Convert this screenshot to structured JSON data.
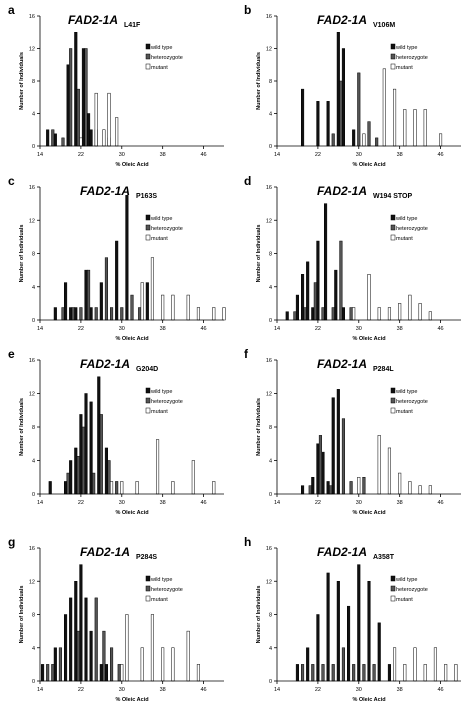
{
  "figure": {
    "legend_labels": [
      "wild type",
      "heterozygote",
      "mutant"
    ],
    "colors": {
      "wild_type": "#111111",
      "heterozygote": "#555555",
      "mutant": "#ffffff",
      "axis": "#000000"
    }
  },
  "chart_data": [
    {
      "panel": "a",
      "type": "bar",
      "gene": "FAD2-1A",
      "mutation": "L41F",
      "xlabel": "% Oleic Acid",
      "ylabel": "Number of Individuals",
      "xticks": [
        14,
        22,
        30,
        38,
        46
      ],
      "yticks": [
        0,
        4,
        8,
        12,
        16
      ],
      "xlim": [
        14,
        50
      ],
      "ylim": [
        0,
        16
      ],
      "grid": false,
      "legend_position": "top-right",
      "series": [
        {
          "name": "wild type",
          "x": [
            15.5,
            17,
            19.5,
            21,
            22.5,
            23.5,
            24
          ],
          "values": [
            2,
            1.5,
            10,
            14,
            12,
            4,
            2
          ]
        },
        {
          "name": "heterozygote",
          "x": [
            16.5,
            18.5,
            20,
            21.5,
            23,
            25,
            27.5
          ],
          "values": [
            2,
            1,
            12,
            7,
            12,
            2,
            1
          ]
        },
        {
          "name": "mutant",
          "x": [
            22,
            25,
            26.5,
            27.5,
            29
          ],
          "values": [
            1,
            6.5,
            2,
            6.5,
            3.5
          ]
        }
      ]
    },
    {
      "panel": "b",
      "type": "bar",
      "gene": "FAD2-1A",
      "mutation": "V106M",
      "xlabel": "% Oleic Acid",
      "ylabel": "Number of Individuals",
      "xticks": [
        14,
        22,
        30,
        38,
        46
      ],
      "yticks": [
        0,
        4,
        8,
        12,
        16
      ],
      "xlim": [
        14,
        50
      ],
      "ylim": [
        0,
        16
      ],
      "grid": false,
      "legend_position": "top-right",
      "series": [
        {
          "name": "wild type",
          "x": [
            19,
            22,
            24,
            26,
            27,
            29
          ],
          "values": [
            7,
            5.5,
            5.5,
            14,
            12,
            2
          ]
        },
        {
          "name": "heterozygote",
          "x": [
            25,
            26.5,
            30,
            32,
            33.5
          ],
          "values": [
            1.5,
            8,
            9,
            3,
            1
          ]
        },
        {
          "name": "mutant",
          "x": [
            31,
            35,
            37,
            39,
            41,
            43,
            46
          ],
          "values": [
            1.5,
            9.5,
            7,
            4.5,
            4.5,
            4.5,
            1.5
          ]
        }
      ]
    },
    {
      "panel": "c",
      "type": "bar",
      "gene": "FAD2-1A",
      "mutation": "P163S",
      "xlabel": "% Oleic Acid",
      "ylabel": "Number of Individuals",
      "xticks": [
        14,
        22,
        30,
        38,
        46
      ],
      "yticks": [
        0,
        4,
        8,
        12,
        16
      ],
      "xlim": [
        14,
        50
      ],
      "ylim": [
        0,
        16
      ],
      "grid": false,
      "legend_position": "top-right",
      "series": [
        {
          "name": "wild type",
          "x": [
            17,
            19,
            20,
            21,
            23,
            24,
            26,
            29,
            31,
            35
          ],
          "values": [
            1.5,
            4.5,
            1.5,
            1.5,
            6,
            1.5,
            4.5,
            9.5,
            15,
            4.5
          ]
        },
        {
          "name": "heterozygote",
          "x": [
            18.5,
            20.5,
            22,
            23.5,
            25,
            27,
            28,
            30,
            32,
            33.5
          ],
          "values": [
            1.5,
            1.5,
            1.5,
            6,
            1.5,
            7.5,
            1.5,
            1.5,
            3,
            1.5
          ]
        },
        {
          "name": "mutant",
          "x": [
            34,
            36,
            38,
            40,
            43,
            45,
            48,
            50
          ],
          "values": [
            4.5,
            7.5,
            3,
            3,
            3,
            1.5,
            1.5,
            1.5
          ]
        }
      ]
    },
    {
      "panel": "d",
      "type": "bar",
      "gene": "FAD2-1A",
      "mutation": "W194 STOP",
      "xlabel": "% Oleic Acid",
      "ylabel": "Number of Individuals",
      "xticks": [
        14,
        22,
        30,
        38,
        46
      ],
      "yticks": [
        0,
        4,
        8,
        12,
        16
      ],
      "xlim": [
        14,
        50
      ],
      "ylim": [
        0,
        16
      ],
      "grid": false,
      "legend_position": "top-right",
      "series": [
        {
          "name": "wild type",
          "x": [
            16,
            18,
            19,
            20,
            21,
            22,
            23.5,
            25.5,
            27
          ],
          "values": [
            1,
            3,
            5.5,
            7,
            1.5,
            9.5,
            14,
            6,
            1.5
          ]
        },
        {
          "name": "heterozygote",
          "x": [
            17.5,
            19.5,
            21.5,
            23,
            25,
            26.5,
            28.5
          ],
          "values": [
            1,
            1.5,
            4.5,
            1.5,
            1.5,
            9.5,
            1.5
          ]
        },
        {
          "name": "mutant",
          "x": [
            29,
            32,
            34,
            36,
            38,
            40,
            42,
            44
          ],
          "values": [
            1.5,
            5.5,
            1.5,
            1.5,
            2,
            3,
            2,
            1
          ]
        }
      ]
    },
    {
      "panel": "e",
      "type": "bar",
      "gene": "FAD2-1A",
      "mutation": "G204D",
      "xlabel": "% Oleic Acid",
      "ylabel": "Number of Individuals",
      "xticks": [
        14,
        22,
        30,
        38,
        46
      ],
      "yticks": [
        0,
        4,
        8,
        12,
        16
      ],
      "xlim": [
        14,
        50
      ],
      "ylim": [
        0,
        16
      ],
      "grid": false,
      "legend_position": "top-right",
      "series": [
        {
          "name": "wild type",
          "x": [
            16,
            19,
            20,
            21,
            22,
            23,
            24,
            25.5,
            27
          ],
          "values": [
            1.5,
            1.5,
            4,
            5.5,
            9.5,
            12,
            11,
            14,
            5.5
          ]
        },
        {
          "name": "heterozygote",
          "x": [
            19.5,
            21.5,
            22.5,
            24.5,
            26,
            27.5,
            29
          ],
          "values": [
            2.5,
            4.5,
            8,
            2.5,
            9.5,
            4,
            1.5
          ]
        },
        {
          "name": "mutant",
          "x": [
            28,
            30,
            33,
            37,
            40,
            44,
            48
          ],
          "values": [
            1.5,
            1.5,
            1.5,
            6.5,
            1.5,
            4,
            1.5
          ]
        }
      ]
    },
    {
      "panel": "f",
      "type": "bar",
      "gene": "FAD2-1A",
      "mutation": "P284L",
      "xlabel": "% Oleic Acid",
      "ylabel": "Number of Individuals",
      "xticks": [
        14,
        22,
        30,
        38,
        46
      ],
      "yticks": [
        0,
        4,
        8,
        12,
        16
      ],
      "xlim": [
        14,
        50
      ],
      "ylim": [
        0,
        16
      ],
      "grid": false,
      "legend_position": "top-right",
      "series": [
        {
          "name": "wild type",
          "x": [
            19,
            21,
            22,
            23,
            24,
            25,
            26
          ],
          "values": [
            1,
            2,
            6,
            5,
            1.5,
            11.5,
            12.5
          ]
        },
        {
          "name": "heterozygote",
          "x": [
            20.5,
            22.5,
            24.5,
            27,
            28.5,
            31
          ],
          "values": [
            1,
            7,
            1,
            9,
            1.5,
            2
          ]
        },
        {
          "name": "mutant",
          "x": [
            30,
            34,
            36,
            38,
            40,
            42,
            44
          ],
          "values": [
            2,
            7,
            5.5,
            2.5,
            1.5,
            1,
            1
          ]
        }
      ]
    },
    {
      "panel": "g",
      "type": "bar",
      "gene": "FAD2-1A",
      "mutation": "P284S",
      "xlabel": "% Oleic Acid",
      "ylabel": "Number of Individuals",
      "xticks": [
        14,
        22,
        30,
        38,
        46
      ],
      "yticks": [
        0,
        4,
        8,
        12,
        16
      ],
      "xlim": [
        14,
        50
      ],
      "ylim": [
        0,
        16
      ],
      "grid": false,
      "legend_position": "top-right",
      "series": [
        {
          "name": "wild type",
          "x": [
            14.5,
            17,
            19,
            20,
            21,
            22,
            23,
            24,
            26,
            27
          ],
          "values": [
            2,
            4,
            8,
            10,
            12,
            14,
            10,
            6,
            2,
            2
          ]
        },
        {
          "name": "heterozygote",
          "x": [
            15.5,
            16.5,
            18,
            21.5,
            25,
            26.5,
            28,
            29.5
          ],
          "values": [
            2,
            2,
            4,
            6,
            10,
            6,
            4,
            2
          ]
        },
        {
          "name": "mutant",
          "x": [
            30,
            31,
            34,
            36,
            38,
            40,
            43,
            45
          ],
          "values": [
            2,
            8,
            4,
            8,
            4,
            4,
            6,
            2
          ]
        }
      ]
    },
    {
      "panel": "h",
      "type": "bar",
      "gene": "FAD2-1A",
      "mutation": "A358T",
      "xlabel": "% Oleic Acid",
      "ylabel": "Number of Individuals",
      "xticks": [
        14,
        22,
        30,
        38,
        46
      ],
      "yticks": [
        0,
        4,
        8,
        12,
        16
      ],
      "xlim": [
        14,
        50
      ],
      "ylim": [
        0,
        16
      ],
      "grid": false,
      "legend_position": "top-right",
      "series": [
        {
          "name": "wild type",
          "x": [
            18,
            20,
            22,
            24,
            26,
            28,
            30,
            32,
            34,
            36
          ],
          "values": [
            2,
            4,
            8,
            13,
            12,
            9,
            14,
            12,
            7,
            2
          ]
        },
        {
          "name": "heterozygote",
          "x": [
            19,
            21,
            23,
            25,
            27,
            29,
            31,
            33
          ],
          "values": [
            2,
            2,
            2,
            2,
            4,
            2,
            2,
            2
          ]
        },
        {
          "name": "mutant",
          "x": [
            37,
            39,
            41,
            43,
            45,
            47,
            49
          ],
          "values": [
            4,
            2,
            4,
            2,
            4,
            2,
            2
          ]
        }
      ]
    }
  ],
  "panels": [
    {
      "letter": "a"
    },
    {
      "letter": "b"
    },
    {
      "letter": "c"
    },
    {
      "letter": "d"
    },
    {
      "letter": "e"
    },
    {
      "letter": "f"
    },
    {
      "letter": "g"
    },
    {
      "letter": "h"
    }
  ]
}
